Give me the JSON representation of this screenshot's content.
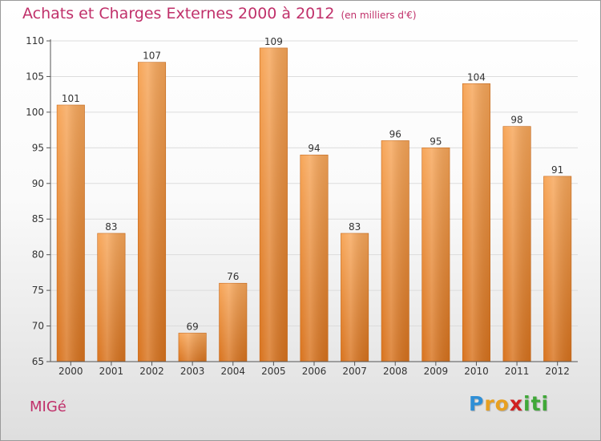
{
  "header": {
    "title": "Achats et Charges Externes 2000 à 2012",
    "subtitle": "(en milliers d'€)"
  },
  "footer": {
    "commune": "MIGé",
    "logo_letters": [
      {
        "ch": "P",
        "color": "#2f8fd6"
      },
      {
        "ch": "r",
        "color": "#e8a020"
      },
      {
        "ch": "o",
        "color": "#e8a020"
      },
      {
        "ch": "x",
        "color": "#d02020"
      },
      {
        "ch": "i",
        "color": "#40a838"
      },
      {
        "ch": "t",
        "color": "#40a838"
      },
      {
        "ch": "i",
        "color": "#40a838"
      }
    ]
  },
  "colors": {
    "accent": "#c0306a",
    "bar_top": "#f7a659",
    "bar_bottom": "#d8731e",
    "grid": "#dcdcdc",
    "axis": "#555555"
  },
  "chart_data": {
    "type": "bar",
    "title": "Achats et Charges Externes 2000 à 2012",
    "subtitle": "(en milliers d'€)",
    "categories": [
      "2000",
      "2001",
      "2002",
      "2003",
      "2004",
      "2005",
      "2006",
      "2007",
      "2008",
      "2009",
      "2010",
      "2011",
      "2012"
    ],
    "values": [
      101,
      83,
      107,
      69,
      76,
      109,
      94,
      83,
      96,
      95,
      104,
      98,
      91
    ],
    "ylim": [
      65,
      110
    ],
    "yticks": [
      65,
      70,
      75,
      80,
      85,
      90,
      95,
      100,
      105,
      110
    ],
    "grid": true,
    "data_labels": true,
    "xlabel": "",
    "ylabel": ""
  }
}
